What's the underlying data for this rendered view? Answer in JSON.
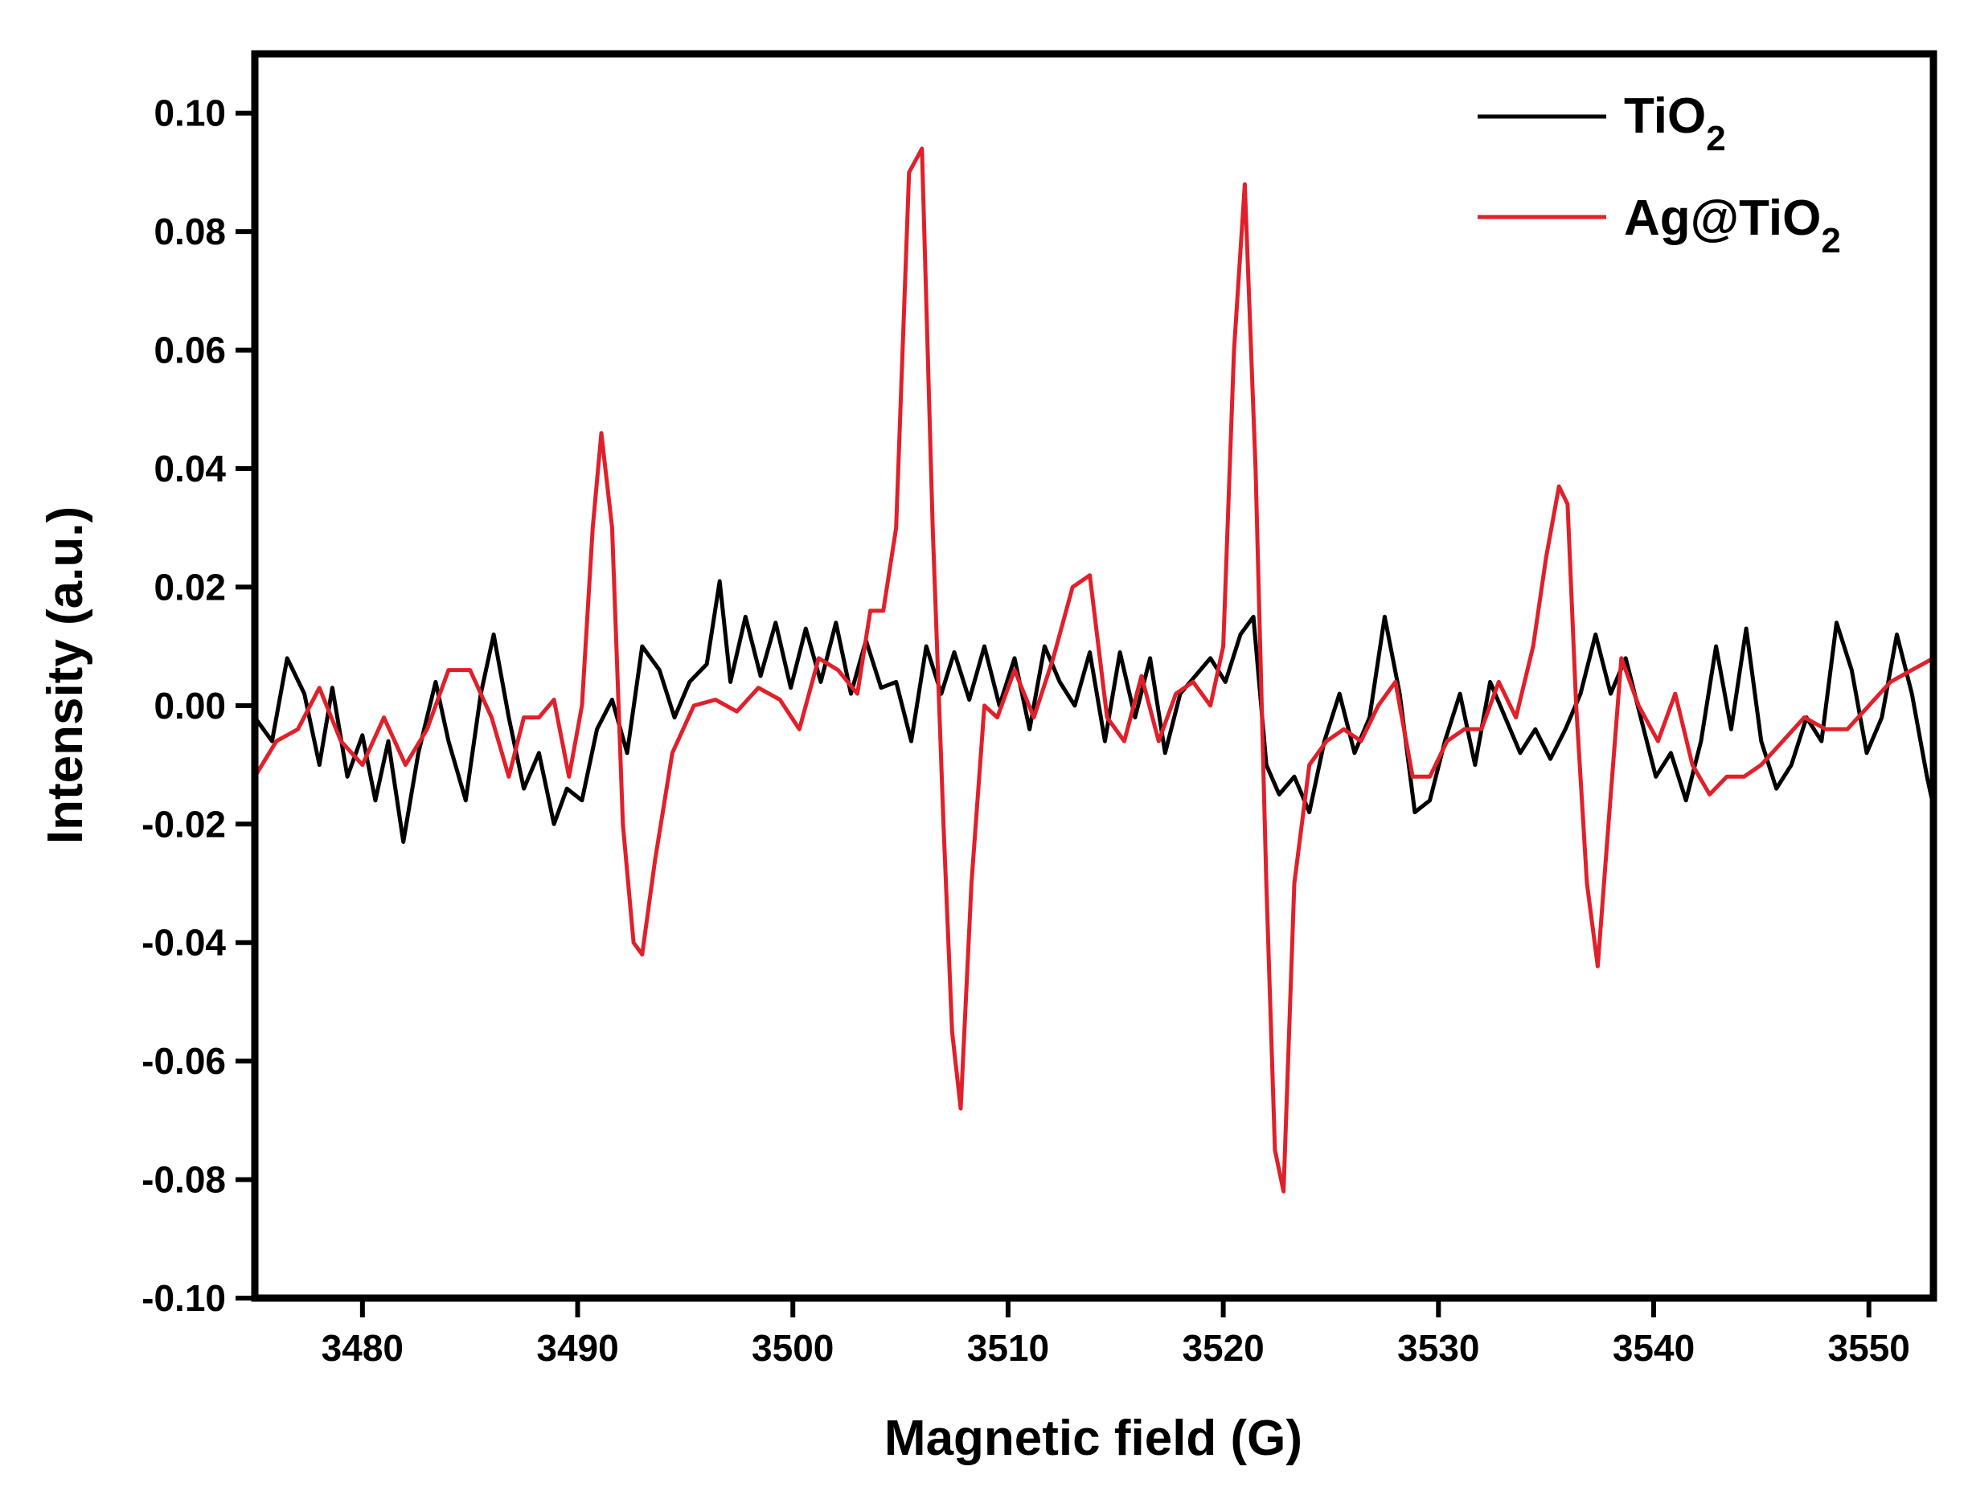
{
  "chart_data": {
    "type": "line",
    "title": "",
    "xlabel": "Magnetic field (G)",
    "ylabel": "Intensity (a.u.)",
    "xlim": [
      3475,
      3553
    ],
    "ylim": [
      -0.1,
      0.11
    ],
    "x_ticks": [
      3480,
      3490,
      3500,
      3510,
      3520,
      3530,
      3540,
      3550
    ],
    "x_tick_labels": [
      "3480",
      "3490",
      "3500",
      "3510",
      "3520",
      "3530",
      "3540",
      "3550"
    ],
    "y_ticks": [
      0.1,
      0.08,
      0.06,
      0.04,
      0.02,
      0.0,
      -0.02,
      -0.04,
      -0.06,
      -0.08,
      -0.1
    ],
    "y_tick_labels": [
      "0.10",
      "0.08",
      "0.06",
      "0.04",
      "0.02",
      "0.00",
      "-0.02",
      "-0.04",
      "-0.06",
      "-0.08",
      "-0.10"
    ],
    "grid": false,
    "legend_position": "top-right",
    "series": [
      {
        "name": "TiO2",
        "label_main": "TiO",
        "label_sub": "2",
        "color": "#000000",
        "x": [
          3475.0,
          3475.8,
          3476.5,
          3477.3,
          3478.0,
          3478.6,
          3479.3,
          3480.0,
          3480.6,
          3481.2,
          3481.9,
          3482.6,
          3483.4,
          3484.0,
          3484.8,
          3485.5,
          3486.1,
          3486.8,
          3487.5,
          3488.2,
          3488.9,
          3489.5,
          3490.2,
          3490.9,
          3491.6,
          3492.3,
          3493.0,
          3493.8,
          3494.5,
          3495.2,
          3496.0,
          3496.6,
          3497.1,
          3497.8,
          3498.5,
          3499.2,
          3499.9,
          3500.6,
          3501.3,
          3502.0,
          3502.7,
          3503.4,
          3504.1,
          3504.8,
          3505.5,
          3506.2,
          3506.9,
          3507.5,
          3508.2,
          3508.9,
          3509.6,
          3510.3,
          3511.0,
          3511.7,
          3512.4,
          3513.1,
          3513.8,
          3514.5,
          3515.2,
          3515.9,
          3516.6,
          3517.3,
          3518.0,
          3518.7,
          3519.4,
          3520.1,
          3520.8,
          3521.4,
          3522.0,
          3522.6,
          3523.3,
          3524.0,
          3524.7,
          3525.4,
          3526.1,
          3526.8,
          3527.5,
          3528.2,
          3528.9,
          3529.6,
          3530.3,
          3531.0,
          3531.7,
          3532.4,
          3533.1,
          3533.8,
          3534.5,
          3535.2,
          3535.9,
          3536.6,
          3537.3,
          3538.0,
          3538.7,
          3539.4,
          3540.1,
          3540.8,
          3541.5,
          3542.2,
          3542.9,
          3543.6,
          3544.3,
          3545.0,
          3545.7,
          3546.4,
          3547.1,
          3547.8,
          3548.5,
          3549.2,
          3549.9,
          3550.6,
          3551.3,
          3552.0,
          3552.7,
          3553.0
        ],
        "y": [
          -0.002,
          -0.006,
          0.008,
          0.002,
          -0.01,
          0.003,
          -0.012,
          -0.005,
          -0.016,
          -0.006,
          -0.023,
          -0.008,
          0.004,
          -0.006,
          -0.016,
          0.002,
          0.012,
          -0.002,
          -0.014,
          -0.008,
          -0.02,
          -0.014,
          -0.016,
          -0.004,
          0.001,
          -0.008,
          0.01,
          0.006,
          -0.002,
          0.004,
          0.007,
          0.021,
          0.004,
          0.015,
          0.005,
          0.014,
          0.003,
          0.013,
          0.004,
          0.014,
          0.002,
          0.011,
          0.003,
          0.004,
          -0.006,
          0.01,
          0.002,
          0.009,
          0.001,
          0.01,
          0.0,
          0.008,
          -0.004,
          0.01,
          0.004,
          0.0,
          0.009,
          -0.006,
          0.009,
          -0.002,
          0.008,
          -0.008,
          0.002,
          0.005,
          0.008,
          0.004,
          0.012,
          0.015,
          -0.01,
          -0.015,
          -0.012,
          -0.018,
          -0.006,
          0.002,
          -0.008,
          -0.002,
          0.015,
          0.002,
          -0.018,
          -0.016,
          -0.006,
          0.002,
          -0.01,
          0.004,
          -0.002,
          -0.008,
          -0.004,
          -0.009,
          -0.004,
          0.002,
          0.012,
          0.002,
          0.008,
          -0.002,
          -0.012,
          -0.008,
          -0.016,
          -0.006,
          0.01,
          -0.004,
          0.013,
          -0.006,
          -0.014,
          -0.01,
          -0.002,
          -0.006,
          0.014,
          0.006,
          -0.008,
          -0.002,
          0.012,
          0.002,
          -0.012,
          -0.017
        ]
      },
      {
        "name": "Ag@TiO2",
        "label_main": "Ag@TiO",
        "label_sub": "2",
        "color": "#e0202a",
        "x": [
          3475.0,
          3476.0,
          3477.0,
          3478.0,
          3479.0,
          3480.0,
          3481.0,
          3482.0,
          3483.0,
          3484.0,
          3485.0,
          3486.0,
          3486.8,
          3487.5,
          3488.2,
          3488.9,
          3489.6,
          3490.2,
          3490.7,
          3491.1,
          3491.6,
          3492.1,
          3492.6,
          3493.0,
          3493.6,
          3494.4,
          3495.4,
          3496.4,
          3497.4,
          3498.4,
          3499.4,
          3500.3,
          3501.2,
          3502.1,
          3503.0,
          3503.6,
          3504.2,
          3504.8,
          3505.4,
          3506.0,
          3506.5,
          3507.0,
          3507.4,
          3507.8,
          3508.3,
          3508.9,
          3509.5,
          3510.3,
          3511.2,
          3512.1,
          3513.0,
          3513.8,
          3514.6,
          3515.4,
          3516.2,
          3517.0,
          3517.8,
          3518.6,
          3519.4,
          3520.0,
          3520.5,
          3521.0,
          3521.5,
          3522.0,
          3522.4,
          3522.8,
          3523.3,
          3524.0,
          3524.8,
          3525.6,
          3526.4,
          3527.2,
          3528.0,
          3528.8,
          3529.6,
          3530.4,
          3531.2,
          3532.0,
          3532.8,
          3533.6,
          3534.4,
          3535.0,
          3535.6,
          3536.0,
          3536.4,
          3536.9,
          3537.4,
          3537.9,
          3538.5,
          3539.3,
          3540.2,
          3541.0,
          3541.8,
          3542.6,
          3543.4,
          3544.2,
          3545.0,
          3546.0,
          3547.0,
          3548.0,
          3549.0,
          3550.0,
          3551.0,
          3552.0,
          3553.0
        ],
        "y": [
          -0.012,
          -0.006,
          -0.004,
          0.003,
          -0.006,
          -0.01,
          -0.002,
          -0.01,
          -0.004,
          0.006,
          0.006,
          -0.002,
          -0.012,
          -0.002,
          -0.002,
          0.001,
          -0.012,
          0.0,
          0.03,
          0.046,
          0.03,
          -0.02,
          -0.04,
          -0.042,
          -0.026,
          -0.008,
          0.0,
          0.001,
          -0.001,
          0.003,
          0.001,
          -0.004,
          0.008,
          0.006,
          0.002,
          0.016,
          0.016,
          0.03,
          0.09,
          0.094,
          0.03,
          -0.02,
          -0.055,
          -0.068,
          -0.03,
          0.0,
          -0.002,
          0.006,
          -0.002,
          0.008,
          0.02,
          0.022,
          -0.002,
          -0.006,
          0.005,
          -0.006,
          0.002,
          0.004,
          0.0,
          0.01,
          0.06,
          0.088,
          0.04,
          -0.03,
          -0.075,
          -0.082,
          -0.03,
          -0.01,
          -0.006,
          -0.004,
          -0.006,
          0.0,
          0.004,
          -0.012,
          -0.012,
          -0.006,
          -0.004,
          -0.004,
          0.004,
          -0.002,
          0.01,
          0.025,
          0.037,
          0.034,
          0.0,
          -0.03,
          -0.044,
          -0.02,
          0.008,
          0.0,
          -0.006,
          0.002,
          -0.01,
          -0.015,
          -0.012,
          -0.012,
          -0.01,
          -0.006,
          -0.002,
          -0.004,
          -0.004,
          0.0,
          0.004,
          0.006,
          0.008
        ]
      }
    ]
  }
}
